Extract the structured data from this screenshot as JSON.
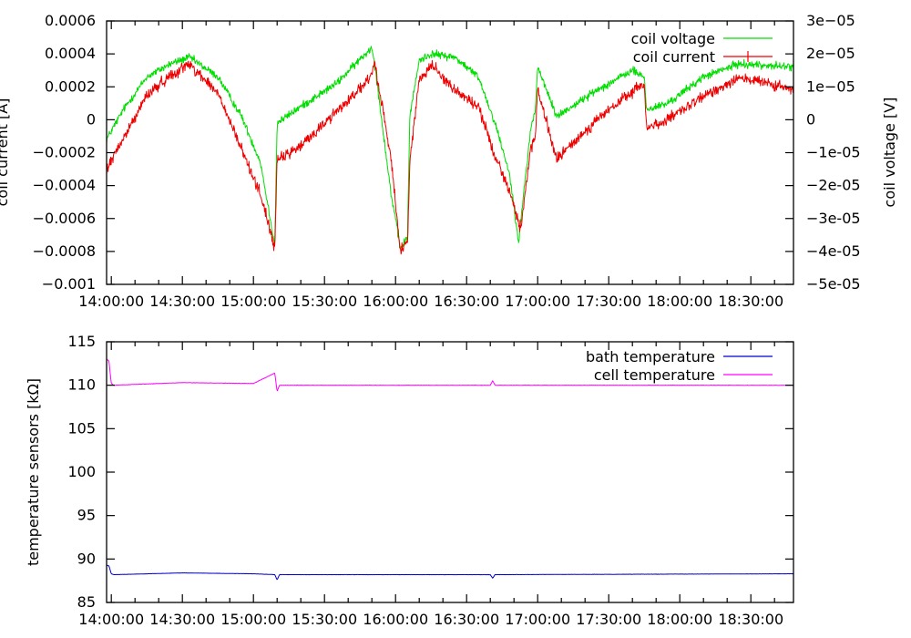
{
  "chart_data": [
    {
      "type": "line",
      "title": "",
      "xlabel": "",
      "ylabel": "coil current [A]",
      "y2label": "coil voltage [V]",
      "x_ticks": [
        "14:00:00",
        "14:30:00",
        "15:00:00",
        "15:30:00",
        "16:00:00",
        "16:30:00",
        "17:00:00",
        "17:30:00",
        "18:00:00",
        "18:30:00"
      ],
      "xlim": [
        "13:58:00",
        "18:48:00"
      ],
      "ylim": [
        -0.001,
        0.0006
      ],
      "y_ticks": [
        "-0.001",
        "-0.0008",
        "-0.0006",
        "-0.0004",
        "-0.0002",
        "0",
        "0.0002",
        "0.0004",
        "0.0006"
      ],
      "y2lim": [
        -5e-05,
        3e-05
      ],
      "y2_ticks": [
        "-5e-05",
        "-4e-05",
        "-3e-05",
        "-2e-05",
        "-1e-05",
        "0",
        "1e-05",
        "2e-05",
        "3e-05"
      ],
      "legend_position": "top-right",
      "grid": false,
      "series": [
        {
          "name": "coil voltage",
          "axis": "right",
          "color": "#00dd00",
          "x": [
            "13:58:00",
            "14:05:00",
            "14:15:00",
            "14:25:00",
            "14:33:00",
            "14:45:00",
            "14:55:00",
            "15:03:00",
            "15:09:00",
            "15:10:00",
            "15:20:00",
            "15:35:00",
            "15:50:00",
            "15:51:00",
            "15:58:00",
            "16:02:00",
            "16:05:00",
            "16:06:00",
            "16:10:00",
            "16:15:00",
            "16:25:00",
            "16:35:00",
            "16:42:00",
            "16:48:00",
            "16:52:00",
            "16:53:00",
            "16:57:00",
            "16:59:00",
            "17:00:00",
            "17:08:00",
            "17:25:00",
            "17:40:00",
            "17:45:00",
            "17:46:00",
            "17:55:00",
            "18:10:00",
            "18:25:00",
            "18:48:00"
          ],
          "y": [
            -6e-06,
            3e-06,
            1.3e-05,
            1.7e-05,
            1.9e-05,
            1.3e-05,
            1e-06,
            -1.3e-05,
            -3.8e-05,
            -1e-06,
            4e-06,
            1.1e-05,
            2.2e-05,
            1.8e-05,
            -2.2e-05,
            -3.9e-05,
            -3.6e-05,
            1e-06,
            1.8e-05,
            2e-05,
            1.9e-05,
            1.3e-05,
            -1e-06,
            -1.6e-05,
            -3.7e-05,
            -3e-05,
            -3e-06,
            3e-06,
            1.6e-05,
            1e-06,
            9e-06,
            1.5e-05,
            1.3e-05,
            3e-06,
            5e-06,
            1.3e-05,
            1.7e-05,
            1.6e-05
          ]
        },
        {
          "name": "coil current",
          "axis": "left",
          "color": "#ee0000",
          "x": [
            "13:58:00",
            "14:05:00",
            "14:15:00",
            "14:25:00",
            "14:33:00",
            "14:45:00",
            "14:55:00",
            "15:03:00",
            "15:09:00",
            "15:10:00",
            "15:20:00",
            "15:35:00",
            "15:50:00",
            "15:51:00",
            "15:58:00",
            "16:02:00",
            "16:05:00",
            "16:06:00",
            "16:10:00",
            "16:15:00",
            "16:25:00",
            "16:35:00",
            "16:42:00",
            "16:48:00",
            "16:52:00",
            "16:53:00",
            "16:57:00",
            "16:59:00",
            "17:00:00",
            "17:08:00",
            "17:25:00",
            "17:40:00",
            "17:45:00",
            "17:46:00",
            "17:55:00",
            "18:10:00",
            "18:25:00",
            "18:48:00"
          ],
          "y": [
            -0.0003,
            -0.00012,
            0.00015,
            0.00027,
            0.00034,
            0.00016,
            -0.00018,
            -0.00045,
            -0.00078,
            -0.00025,
            -0.00016,
            5e-05,
            0.00026,
            0.00036,
            -0.00022,
            -0.0008,
            -0.00075,
            -0.00025,
            0.00024,
            0.00034,
            0.00018,
            8e-05,
            -0.00022,
            -0.00042,
            -0.00064,
            -0.00064,
            -0.00018,
            -0.00012,
            0.00018,
            -0.00024,
            0,
            0.00017,
            0.00022,
            -5e-05,
            0,
            0.00014,
            0.00026,
            0.00018
          ]
        }
      ]
    },
    {
      "type": "line",
      "title": "",
      "xlabel": "",
      "ylabel": "temperature sensors [kΩ]",
      "x_ticks": [
        "14:00:00",
        "14:30:00",
        "15:00:00",
        "15:30:00",
        "16:00:00",
        "16:30:00",
        "17:00:00",
        "17:30:00",
        "18:00:00",
        "18:30:00"
      ],
      "xlim": [
        "13:58:00",
        "18:48:00"
      ],
      "ylim": [
        85,
        115
      ],
      "y_ticks": [
        "85",
        "90",
        "95",
        "100",
        "105",
        "110",
        "115"
      ],
      "legend_position": "top-right",
      "grid": false,
      "series": [
        {
          "name": "bath temperature",
          "color": "#0000cc",
          "x": [
            "13:58:00",
            "13:59:00",
            "14:00:00",
            "14:01:00",
            "14:30:00",
            "15:00:00",
            "15:09:00",
            "15:10:00",
            "15:11:00",
            "16:40:00",
            "16:41:00",
            "16:42:00",
            "18:48:00"
          ],
          "y": [
            89.3,
            89.2,
            88.3,
            88.2,
            88.4,
            88.3,
            88.2,
            87.6,
            88.2,
            88.2,
            87.8,
            88.2,
            88.3
          ]
        },
        {
          "name": "cell temperature",
          "color": "#ff00ff",
          "x": [
            "13:58:00",
            "13:59:00",
            "14:00:00",
            "14:01:00",
            "14:30:00",
            "15:00:00",
            "15:09:00",
            "15:10:00",
            "15:11:00",
            "16:40:00",
            "16:41:00",
            "16:42:00",
            "18:48:00"
          ],
          "y": [
            113,
            112.8,
            110.2,
            110,
            110.3,
            110.2,
            111.4,
            109.3,
            110,
            110,
            110.5,
            110,
            110
          ]
        }
      ]
    }
  ]
}
